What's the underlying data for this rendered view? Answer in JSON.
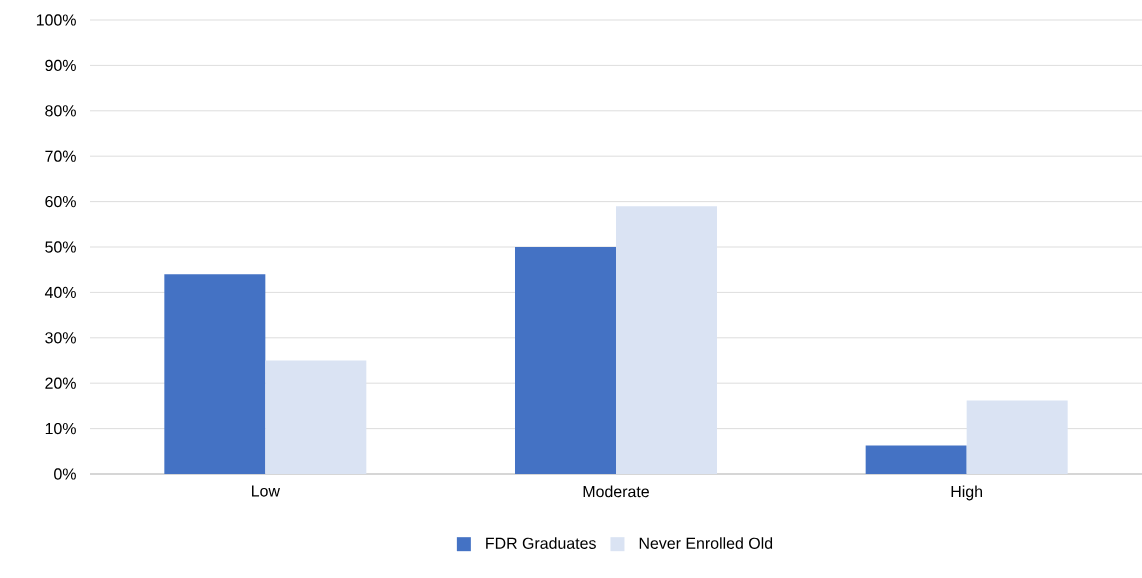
{
  "chart_data": {
    "type": "bar",
    "categories": [
      "Low",
      "Moderate",
      "High"
    ],
    "series": [
      {
        "name": "FDR Graduates",
        "color": "#4472c4",
        "values": [
          44,
          50,
          6.3
        ]
      },
      {
        "name": "Never Enrolled Old",
        "color": "#dae3f3",
        "values": [
          25,
          59,
          16.2
        ]
      }
    ],
    "ylim": [
      0,
      100
    ],
    "yticks": [
      {
        "value": 0,
        "label": "0%"
      },
      {
        "value": 10,
        "label": "10%"
      },
      {
        "value": 20,
        "label": "20%"
      },
      {
        "value": 30,
        "label": "30%"
      },
      {
        "value": 40,
        "label": "40%"
      },
      {
        "value": 50,
        "label": "50%"
      },
      {
        "value": 60,
        "label": "60%"
      },
      {
        "value": 70,
        "label": "70%"
      },
      {
        "value": 80,
        "label": "80%"
      },
      {
        "value": 90,
        "label": "90%"
      },
      {
        "value": 100,
        "label": "100%"
      }
    ],
    "grid": "y",
    "legend": "bottom"
  }
}
